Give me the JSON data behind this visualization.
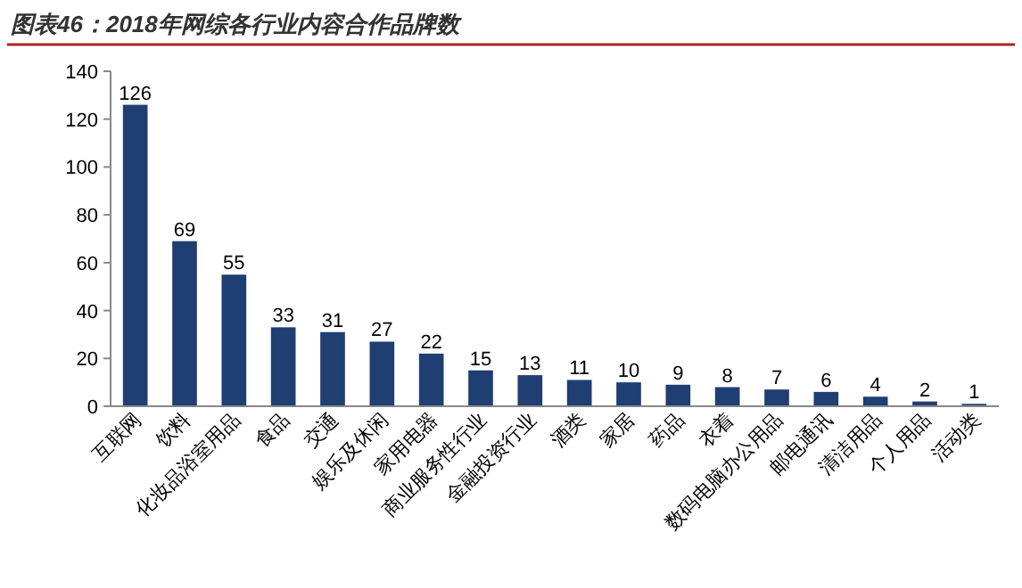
{
  "chart_data": {
    "type": "bar",
    "title": "图表46：2018年网综各行业内容合作品牌数",
    "categories": [
      "互联网",
      "饮料",
      "化妆品浴室用品",
      "食品",
      "交通",
      "娱乐及休闲",
      "家用电器",
      "商业服务性行业",
      "金融投资行业",
      "酒类",
      "家居",
      "药品",
      "衣着",
      "数码电脑办公用品",
      "邮电通讯",
      "清洁用品",
      "个人用品",
      "活动类"
    ],
    "values": [
      126,
      69,
      55,
      33,
      31,
      27,
      22,
      15,
      13,
      11,
      10,
      9,
      8,
      7,
      6,
      4,
      2,
      1
    ],
    "color": "#1f3f73",
    "ylim": [
      0,
      140
    ],
    "yticks": [
      0,
      20,
      40,
      60,
      80,
      100,
      120,
      140
    ],
    "data_labels": true,
    "grid": false
  }
}
